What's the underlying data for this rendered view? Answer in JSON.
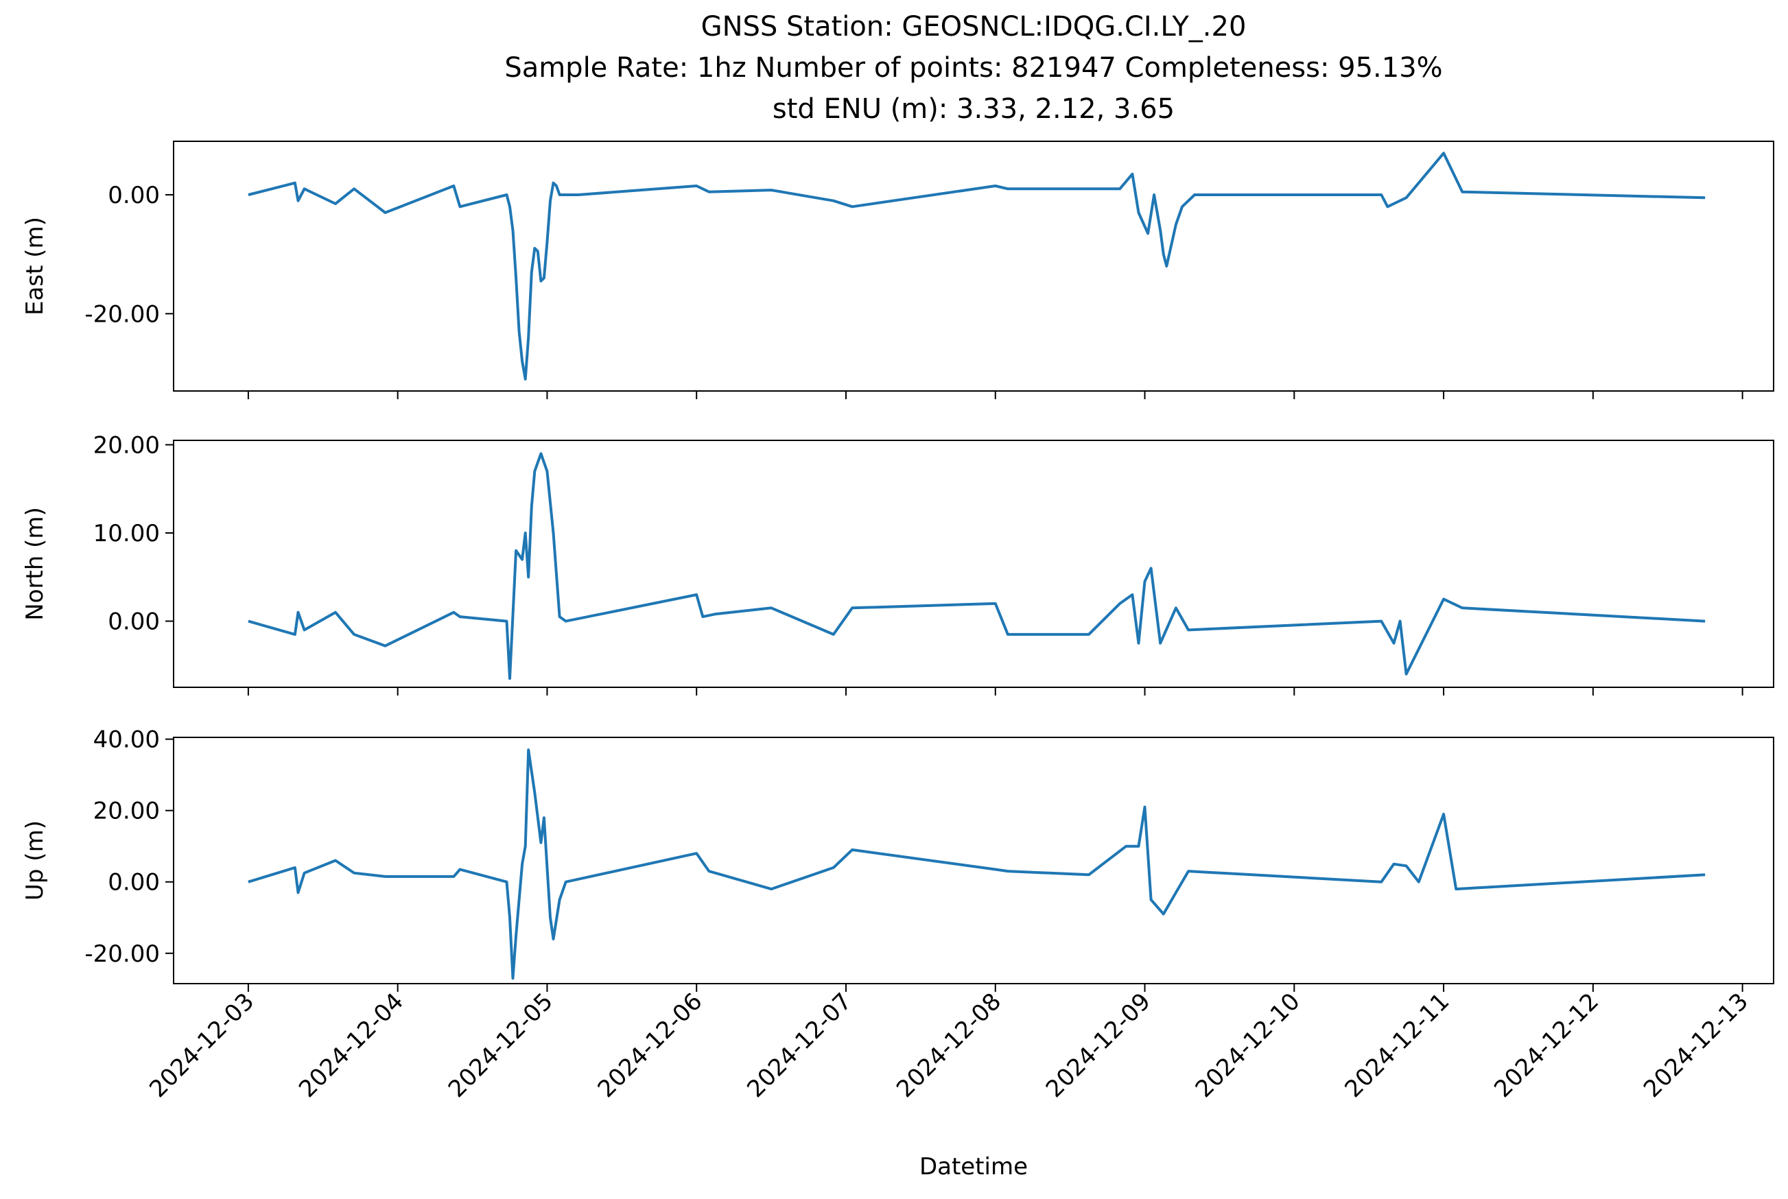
{
  "chart_data": {
    "type": "line",
    "title_lines": [
      "GNSS Station: GEOSNCL:IDQG.CI.LY_.20",
      "Sample Rate: 1hz   Number of points: 821947    Completeness:  95.13%",
      "std ENU (m):  3.33, 2.12, 3.65"
    ],
    "xlabel": "Datetime",
    "x_ticks": [
      "2024-12-03",
      "2024-12-04",
      "2024-12-05",
      "2024-12-06",
      "2024-12-07",
      "2024-12-08",
      "2024-12-09",
      "2024-12-10",
      "2024-12-11",
      "2024-12-12",
      "2024-12-13"
    ],
    "xlim": [
      "2024-12-02T12:00",
      "2024-12-13T05:00"
    ],
    "line_color": "#1f77b4",
    "grid": false,
    "panels": [
      {
        "ylabel": "East (m)",
        "ylim": [
          -33,
          9
        ],
        "y_ticks": [
          0,
          -20
        ],
        "y_tick_labels": [
          "0.00",
          "-20.00"
        ],
        "x": [
          "2024-12-03T00:00",
          "2024-12-03T07:30",
          "2024-12-03T08:00",
          "2024-12-03T09:00",
          "2024-12-03T14:00",
          "2024-12-03T17:00",
          "2024-12-03T22:00",
          "2024-12-04T09:00",
          "2024-12-04T10:00",
          "2024-12-04T17:30",
          "2024-12-04T18:00",
          "2024-12-04T18:30",
          "2024-12-04T19:00",
          "2024-12-04T19:30",
          "2024-12-04T20:00",
          "2024-12-04T20:30",
          "2024-12-04T21:00",
          "2024-12-04T21:30",
          "2024-12-04T22:00",
          "2024-12-04T22:30",
          "2024-12-04T23:00",
          "2024-12-04T23:30",
          "2024-12-05T00:00",
          "2024-12-05T00:30",
          "2024-12-05T01:00",
          "2024-12-05T01:30",
          "2024-12-05T02:00",
          "2024-12-05T03:00",
          "2024-12-05T05:00",
          "2024-12-06T00:00",
          "2024-12-06T02:00",
          "2024-12-06T12:00",
          "2024-12-06T22:00",
          "2024-12-07T01:00",
          "2024-12-08T00:00",
          "2024-12-08T02:00",
          "2024-12-08T12:00",
          "2024-12-08T20:00",
          "2024-12-08T22:00",
          "2024-12-08T23:00",
          "2024-12-09T00:30",
          "2024-12-09T01:30",
          "2024-12-09T02:30",
          "2024-12-09T03:00",
          "2024-12-09T03:30",
          "2024-12-09T05:00",
          "2024-12-09T06:00",
          "2024-12-09T08:00",
          "2024-12-10T14:00",
          "2024-12-10T15:00",
          "2024-12-10T18:00",
          "2024-12-11T00:00",
          "2024-12-11T03:00",
          "2024-12-12T18:00"
        ],
        "y": [
          0.0,
          2.0,
          -1.0,
          1.0,
          -1.5,
          1.0,
          -3.0,
          1.5,
          -2.0,
          0.0,
          -2.0,
          -6.0,
          -14.0,
          -23.0,
          -28.0,
          -31.0,
          -24.0,
          -13.0,
          -9.0,
          -9.5,
          -14.5,
          -14.0,
          -8.0,
          -1.0,
          2.0,
          1.5,
          0.0,
          0.0,
          0.0,
          1.5,
          0.5,
          0.8,
          -1.0,
          -2.0,
          1.5,
          1.0,
          1.0,
          1.0,
          3.5,
          -3.0,
          -6.5,
          0.0,
          -6.0,
          -10.0,
          -12.0,
          -5.0,
          -2.0,
          0.0,
          0.0,
          -2.0,
          -0.5,
          7.0,
          0.5,
          -0.5
        ]
      },
      {
        "ylabel": "North (m)",
        "ylim": [
          -7.5,
          20.5
        ],
        "y_ticks": [
          0,
          10,
          20
        ],
        "y_tick_labels": [
          "0.00",
          "10.00",
          "20.00"
        ],
        "x": [
          "2024-12-03T00:00",
          "2024-12-03T07:30",
          "2024-12-03T08:00",
          "2024-12-03T09:00",
          "2024-12-03T14:00",
          "2024-12-03T17:00",
          "2024-12-03T22:00",
          "2024-12-04T09:00",
          "2024-12-04T10:00",
          "2024-12-04T17:30",
          "2024-12-04T18:00",
          "2024-12-04T19:00",
          "2024-12-04T20:00",
          "2024-12-04T20:30",
          "2024-12-04T21:00",
          "2024-12-04T21:30",
          "2024-12-04T22:00",
          "2024-12-04T23:00",
          "2024-12-05T00:00",
          "2024-12-05T01:00",
          "2024-12-05T02:00",
          "2024-12-05T03:00",
          "2024-12-06T00:00",
          "2024-12-06T01:00",
          "2024-12-06T03:00",
          "2024-12-06T12:00",
          "2024-12-06T22:00",
          "2024-12-07T01:00",
          "2024-12-08T00:00",
          "2024-12-08T02:00",
          "2024-12-08T15:00",
          "2024-12-08T20:00",
          "2024-12-08T22:00",
          "2024-12-08T23:00",
          "2024-12-09T00:00",
          "2024-12-09T01:00",
          "2024-12-09T02:30",
          "2024-12-09T05:00",
          "2024-12-09T07:00",
          "2024-12-10T14:00",
          "2024-12-10T16:00",
          "2024-12-10T17:00",
          "2024-12-10T18:00",
          "2024-12-11T00:00",
          "2024-12-11T03:00",
          "2024-12-12T18:00"
        ],
        "y": [
          0.0,
          -1.5,
          1.0,
          -1.0,
          1.0,
          -1.5,
          -2.8,
          1.0,
          0.5,
          0.0,
          -6.5,
          8.0,
          7.0,
          10.0,
          5.0,
          13.0,
          17.0,
          19.0,
          17.0,
          10.0,
          0.5,
          0.0,
          3.0,
          0.5,
          0.8,
          1.5,
          -1.5,
          1.5,
          2.0,
          -1.5,
          -1.5,
          2.0,
          3.0,
          -2.5,
          4.5,
          6.0,
          -2.5,
          1.5,
          -1.0,
          0.0,
          -2.5,
          0.0,
          -6.0,
          2.5,
          1.5,
          0.0
        ]
      },
      {
        "ylabel": "Up (m)",
        "ylim": [
          -28.5,
          40.5
        ],
        "y_ticks": [
          -20,
          0,
          20,
          40
        ],
        "y_tick_labels": [
          "-20.00",
          "0.00",
          "20.00",
          "40.00"
        ],
        "x": [
          "2024-12-03T00:00",
          "2024-12-03T07:30",
          "2024-12-03T08:00",
          "2024-12-03T09:00",
          "2024-12-03T14:00",
          "2024-12-03T17:00",
          "2024-12-03T22:00",
          "2024-12-04T09:00",
          "2024-12-04T10:00",
          "2024-12-04T17:30",
          "2024-12-04T18:00",
          "2024-12-04T18:30",
          "2024-12-04T19:00",
          "2024-12-04T20:00",
          "2024-12-04T20:30",
          "2024-12-04T21:00",
          "2024-12-04T22:00",
          "2024-12-04T23:00",
          "2024-12-04T23:30",
          "2024-12-05T00:30",
          "2024-12-05T01:00",
          "2024-12-05T02:00",
          "2024-12-05T03:00",
          "2024-12-06T00:00",
          "2024-12-06T02:00",
          "2024-12-06T12:00",
          "2024-12-06T22:00",
          "2024-12-07T01:00",
          "2024-12-08T00:00",
          "2024-12-08T02:00",
          "2024-12-08T15:00",
          "2024-12-08T21:00",
          "2024-12-08T23:00",
          "2024-12-09T00:00",
          "2024-12-09T01:00",
          "2024-12-09T03:00",
          "2024-12-09T05:00",
          "2024-12-09T07:00",
          "2024-12-10T14:00",
          "2024-12-10T16:00",
          "2024-12-10T18:00",
          "2024-12-10T20:00",
          "2024-12-11T00:00",
          "2024-12-11T02:00",
          "2024-12-12T18:00"
        ],
        "y": [
          0.0,
          4.0,
          -3.0,
          2.5,
          6.0,
          2.5,
          1.5,
          1.5,
          3.5,
          0.0,
          -10.0,
          -27.0,
          -15.0,
          5.0,
          10.0,
          37.0,
          25.0,
          11.0,
          18.0,
          -10.0,
          -16.0,
          -5.0,
          0.0,
          8.0,
          3.0,
          -2.0,
          4.0,
          9.0,
          3.5,
          3.0,
          2.0,
          10.0,
          10.0,
          21.0,
          -5.0,
          -9.0,
          -3.0,
          3.0,
          0.0,
          5.0,
          4.5,
          0.0,
          19.0,
          -2.0,
          2.0
        ]
      }
    ]
  }
}
